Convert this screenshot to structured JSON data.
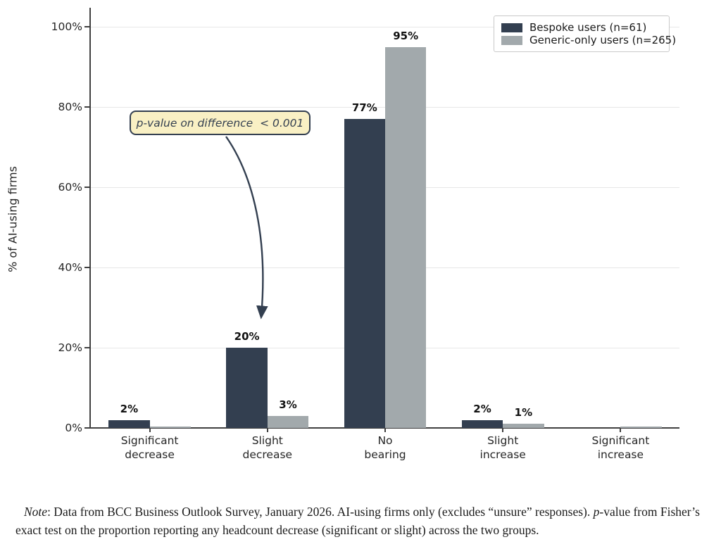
{
  "chart_data": {
    "type": "bar",
    "title": "",
    "ylabel": "% of AI-using firms",
    "xlabel": "",
    "categories": [
      "Significant\ndecrease",
      "Slight\ndecrease",
      "No\nbearing",
      "Slight\nincrease",
      "Significant\nincrease"
    ],
    "series": [
      {
        "name": "Bespoke users (n=61)",
        "color": "#333f50",
        "values": [
          2,
          20,
          77,
          2,
          0
        ],
        "bar_labels": [
          "2%",
          "20%",
          "77%",
          "2%",
          ""
        ]
      },
      {
        "name": "Generic-only users (n=265)",
        "color": "#a2a9ac",
        "values": [
          0.4,
          3,
          95,
          1,
          0.4
        ],
        "bar_labels": [
          "",
          "3%",
          "95%",
          "1%",
          ""
        ]
      }
    ],
    "yticks": [
      {
        "value": 0,
        "label": "0%"
      },
      {
        "value": 20,
        "label": "20%"
      },
      {
        "value": 40,
        "label": "40%"
      },
      {
        "value": 60,
        "label": "60%"
      },
      {
        "value": 80,
        "label": "80%"
      },
      {
        "value": 100,
        "label": "100%"
      }
    ],
    "ylim": [
      0,
      105
    ],
    "grid": "horizontal",
    "legend_position": "upper right",
    "annotation": {
      "text": "p-value on difference  < 0.001"
    }
  },
  "note": {
    "label": "Note",
    "after_label": ": Data from BCC Business Outlook Survey, January 2026. AI-using firms only (excludes “unsure” responses). ",
    "p": "p",
    "rest": "-value from Fisher’s exact test on the proportion reporting any headcount decrease (significant or slight) across the two groups."
  }
}
